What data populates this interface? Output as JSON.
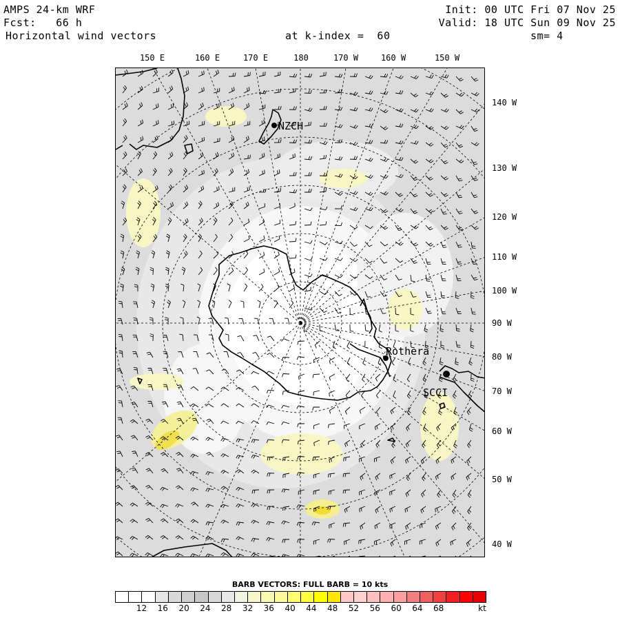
{
  "header": {
    "left_line1": "AMPS 24-km WRF",
    "left_line2": "Fcst:   66 h",
    "left_line3": "Horizontal wind vectors",
    "center_line3": "at k-index =  60",
    "right_line1": "Init: 00 UTC Fri 07 Nov 25",
    "right_line2": "Valid: 18 UTC Sun 09 Nov 25",
    "right_line3": "sm= 4"
  },
  "longitude_labels": [
    "150 E",
    "160 E",
    "170 E",
    "180",
    "170 W",
    "160 W",
    "150 W"
  ],
  "latitude_side_labels": [
    "140 W",
    "130 W",
    "120 W",
    "110 W",
    "100 W",
    "90 W",
    "80 W",
    "70 W",
    "60 W",
    "50 W",
    "40 W"
  ],
  "stations": [
    {
      "name": "NZCH"
    },
    {
      "name": "Rothera"
    },
    {
      "name": "SCCI"
    }
  ],
  "colorbar": {
    "caption": "BARB VECTORS:  FULL BARB = 10 kts",
    "colors": [
      "#ffffff",
      "#ffffff",
      "#ffffff",
      "#e6e6e6",
      "#d9d9d9",
      "#d0d0d0",
      "#c8c8c8",
      "#d8d8d8",
      "#e8e8e8",
      "#f2f2e0",
      "#f5f5c8",
      "#f8f8b0",
      "#fafa9a",
      "#ffff70",
      "#ffff40",
      "#ffff00",
      "#ffe600",
      "#ffc8c8",
      "#ffd0d0",
      "#ffc0c0",
      "#ffb0b0",
      "#ffa0a0",
      "#f08080",
      "#f06060",
      "#f04040",
      "#f02020",
      "#ff0000",
      "#e60000"
    ],
    "tick_labels": [
      "12",
      "16",
      "20",
      "24",
      "28",
      "32",
      "36",
      "40",
      "44",
      "48",
      "52",
      "56",
      "60",
      "64",
      "68",
      "kt"
    ]
  }
}
